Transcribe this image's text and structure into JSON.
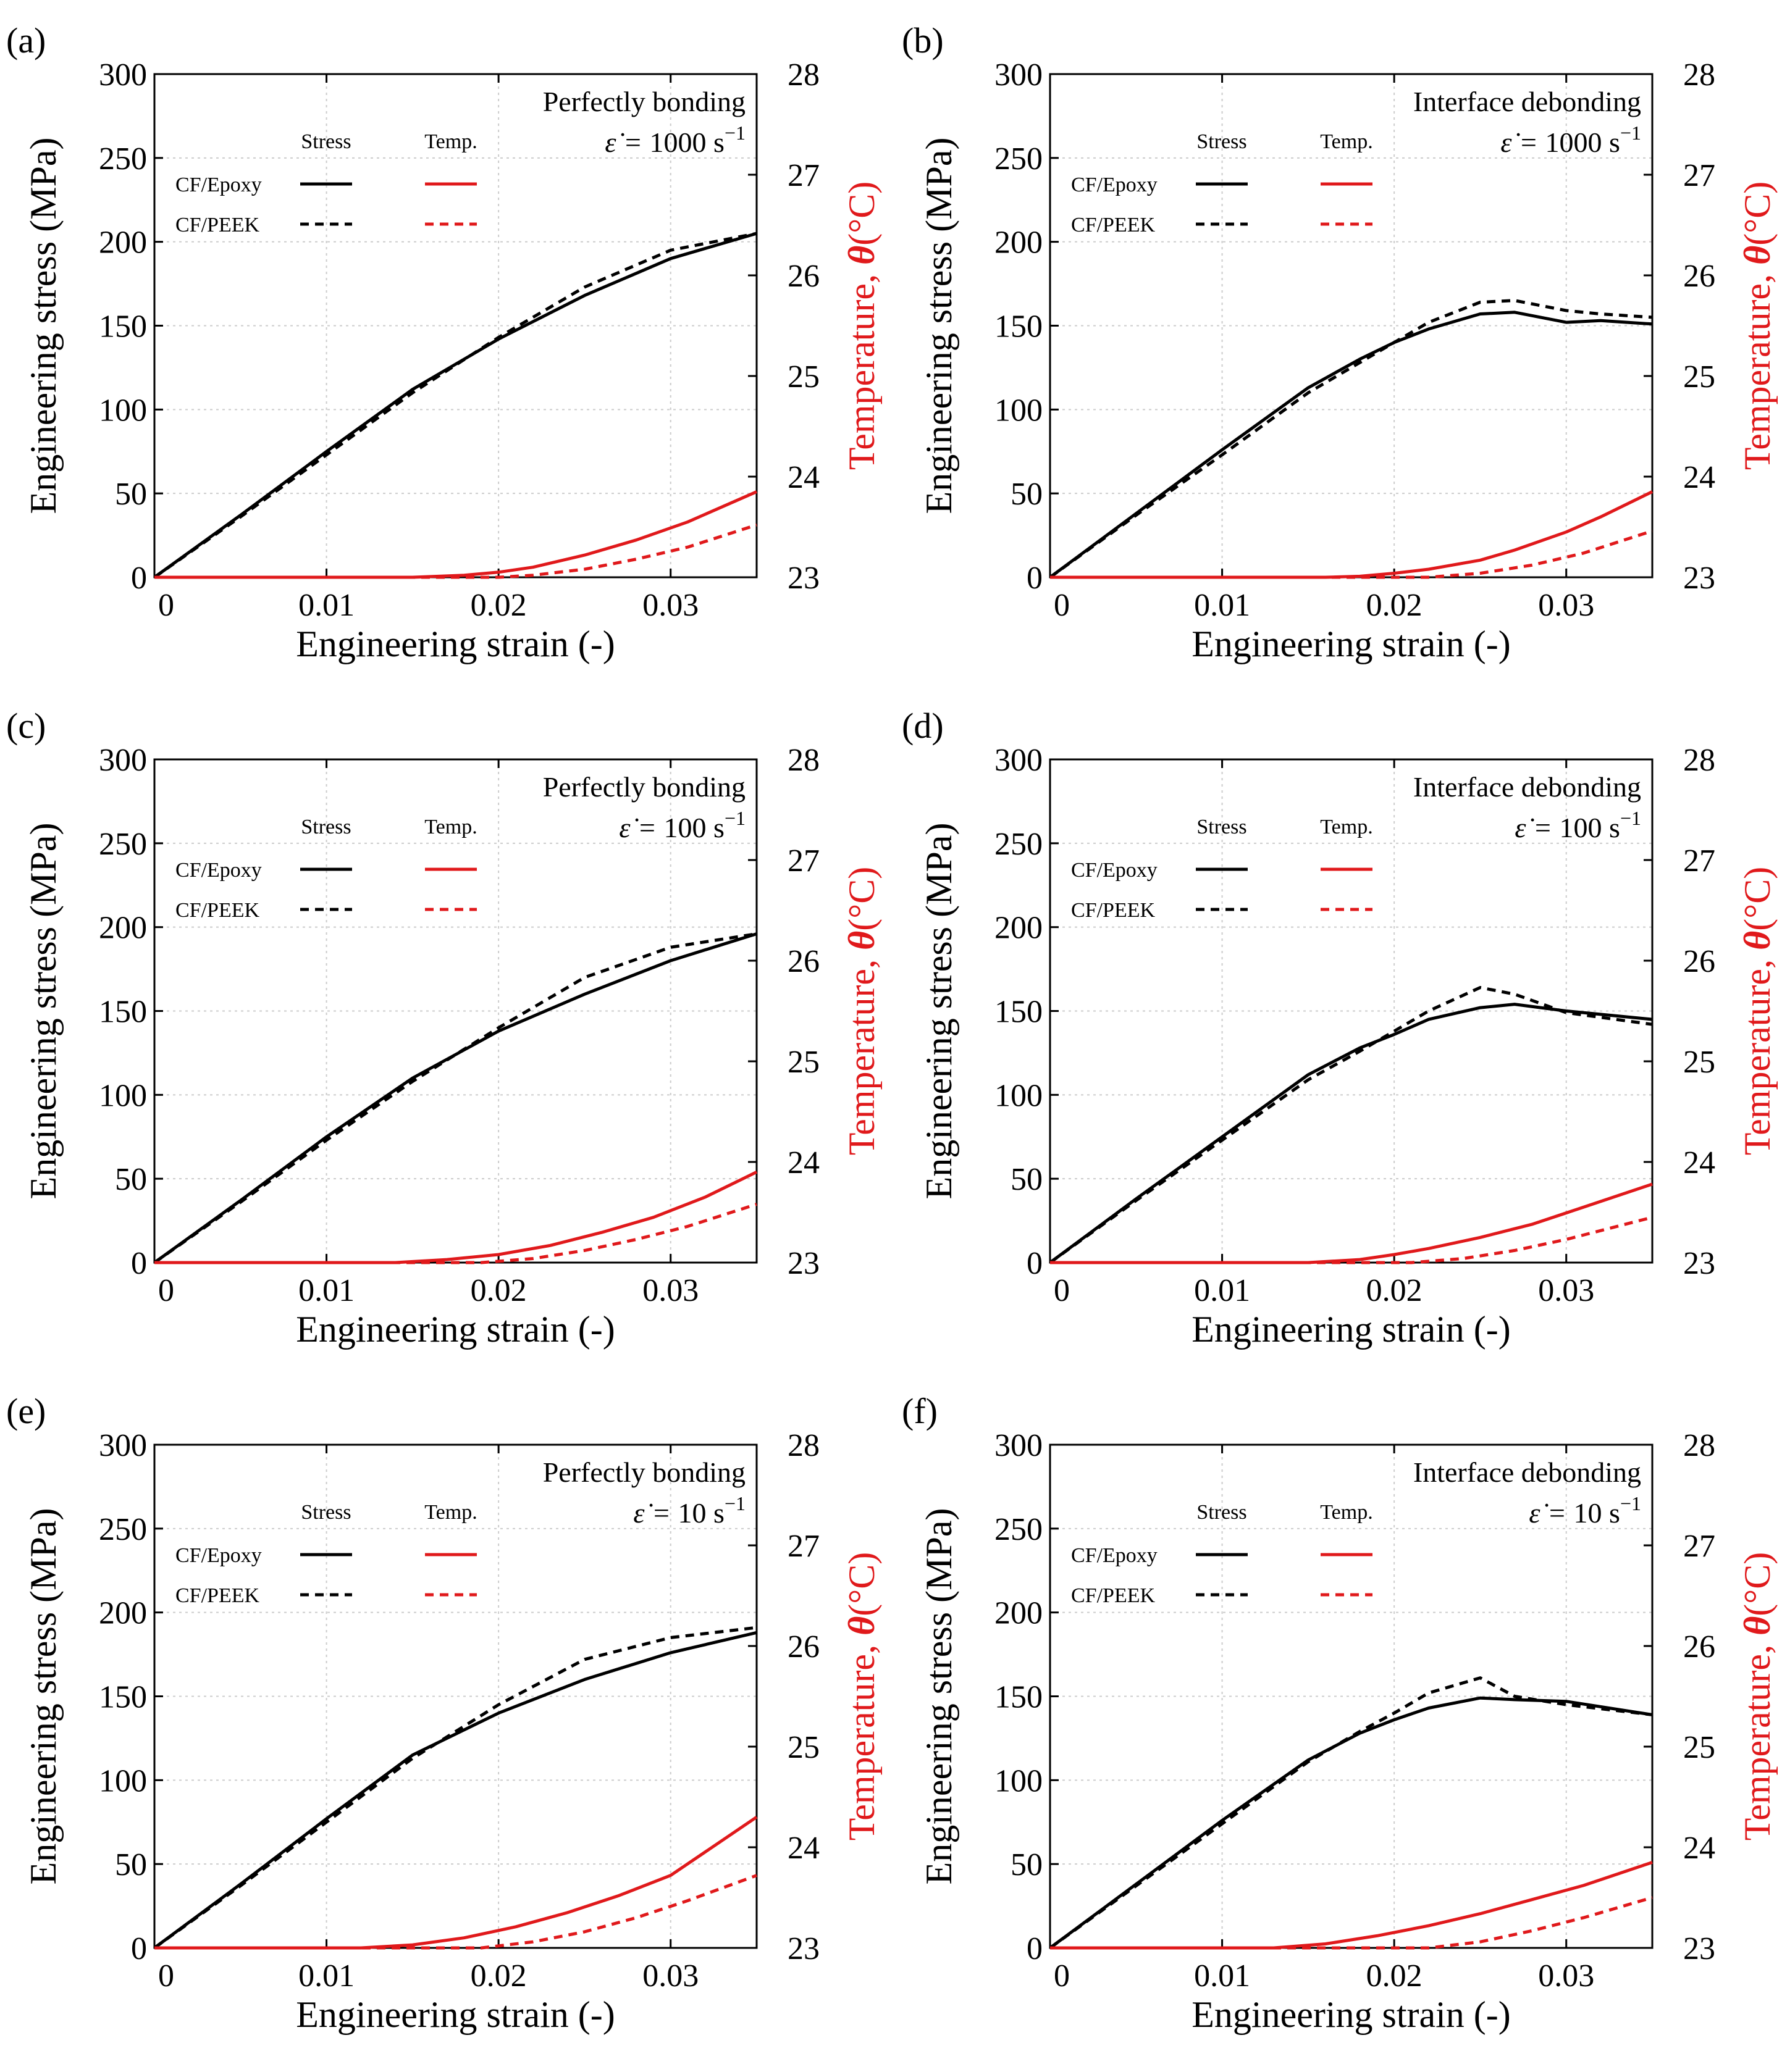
{
  "chart_data": [
    {
      "id": "a",
      "type": "line",
      "panel_label": "(a)",
      "condition": "Perfectly bonding",
      "rate_prefix": "ε̇ = ",
      "rate_value": "1000 s",
      "rate_exp": "−1",
      "xlabel": "Engineering strain (-)",
      "ylabel": "Engineering stress (MPa)",
      "y2label_prefix": "Temperature, ",
      "y2label_symbol": "θ",
      "y2label_unit": "(°C)",
      "xlim": [
        0,
        0.035
      ],
      "ylim": [
        0,
        300
      ],
      "y2lim": [
        23,
        28
      ],
      "xticks": [
        "0",
        "0.01",
        "0.02",
        "0.03"
      ],
      "yticks": [
        "0",
        "50",
        "100",
        "150",
        "200",
        "250",
        "300"
      ],
      "y2ticks": [
        "23",
        "24",
        "25",
        "26",
        "27",
        "28"
      ],
      "legend": {
        "stress_header": "Stress",
        "temp_header": "Temp.",
        "row1": "CF/Epoxy",
        "row2": "CF/PEEK"
      },
      "series": [
        {
          "name": "CF/Epoxy Stress",
          "axis": "left",
          "color": "#000000",
          "dashed": false,
          "x": [
            0,
            0.005,
            0.01,
            0.015,
            0.02,
            0.025,
            0.03,
            0.035
          ],
          "y": [
            0,
            37,
            75,
            112,
            142,
            168,
            190,
            205
          ]
        },
        {
          "name": "CF/PEEK Stress",
          "axis": "left",
          "color": "#000000",
          "dashed": true,
          "x": [
            0,
            0.005,
            0.01,
            0.015,
            0.02,
            0.025,
            0.03,
            0.035
          ],
          "y": [
            0,
            36,
            73,
            110,
            143,
            173,
            195,
            205
          ]
        },
        {
          "name": "CF/Epoxy Temp.",
          "axis": "right",
          "color": "#e0191b",
          "dashed": false,
          "x": [
            0,
            0.015,
            0.018,
            0.02,
            0.022,
            0.025,
            0.028,
            0.031,
            0.035
          ],
          "y": [
            23,
            23,
            23.02,
            23.05,
            23.1,
            23.22,
            23.37,
            23.55,
            23.85
          ]
        },
        {
          "name": "CF/PEEK Temp.",
          "axis": "right",
          "color": "#e0191b",
          "dashed": true,
          "x": [
            0,
            0.02,
            0.022,
            0.025,
            0.028,
            0.031,
            0.035
          ],
          "y": [
            23,
            23,
            23.02,
            23.08,
            23.18,
            23.3,
            23.52
          ]
        }
      ]
    },
    {
      "id": "b",
      "type": "line",
      "panel_label": "(b)",
      "condition": "Interface debonding",
      "rate_prefix": "ε̇ = ",
      "rate_value": "1000 s",
      "rate_exp": "−1",
      "xlabel": "Engineering strain (-)",
      "ylabel": "Engineering stress (MPa)",
      "y2label_prefix": "Temperature, ",
      "y2label_symbol": "θ",
      "y2label_unit": "(°C)",
      "xlim": [
        0,
        0.035
      ],
      "ylim": [
        0,
        300
      ],
      "y2lim": [
        23,
        28
      ],
      "xticks": [
        "0",
        "0.01",
        "0.02",
        "0.03"
      ],
      "yticks": [
        "0",
        "50",
        "100",
        "150",
        "200",
        "250",
        "300"
      ],
      "y2ticks": [
        "23",
        "24",
        "25",
        "26",
        "27",
        "28"
      ],
      "legend": {
        "stress_header": "Stress",
        "temp_header": "Temp.",
        "row1": "CF/Epoxy",
        "row2": "CF/PEEK"
      },
      "series": [
        {
          "name": "CF/Epoxy Stress",
          "axis": "left",
          "color": "#000000",
          "dashed": false,
          "x": [
            0,
            0.005,
            0.01,
            0.015,
            0.018,
            0.02,
            0.022,
            0.025,
            0.027,
            0.03,
            0.032,
            0.035
          ],
          "y": [
            0,
            38,
            76,
            113,
            130,
            140,
            148,
            157,
            158,
            152,
            153,
            151
          ]
        },
        {
          "name": "CF/PEEK Stress",
          "axis": "left",
          "color": "#000000",
          "dashed": true,
          "x": [
            0,
            0.005,
            0.01,
            0.015,
            0.018,
            0.02,
            0.022,
            0.025,
            0.027,
            0.03,
            0.032,
            0.035
          ],
          "y": [
            0,
            37,
            73,
            110,
            128,
            140,
            152,
            164,
            165,
            159,
            157,
            155
          ]
        },
        {
          "name": "CF/Epoxy Temp.",
          "axis": "right",
          "color": "#e0191b",
          "dashed": false,
          "x": [
            0,
            0.016,
            0.018,
            0.02,
            0.022,
            0.025,
            0.027,
            0.03,
            0.032,
            0.035
          ],
          "y": [
            23,
            23,
            23.01,
            23.04,
            23.08,
            23.17,
            23.27,
            23.45,
            23.6,
            23.85
          ]
        },
        {
          "name": "CF/PEEK Temp.",
          "axis": "right",
          "color": "#e0191b",
          "dashed": true,
          "x": [
            0,
            0.022,
            0.025,
            0.028,
            0.031,
            0.035
          ],
          "y": [
            23,
            23,
            23.04,
            23.12,
            23.24,
            23.46
          ]
        }
      ]
    },
    {
      "id": "c",
      "type": "line",
      "panel_label": "(c)",
      "condition": "Perfectly bonding",
      "rate_prefix": "ε̇ = ",
      "rate_value": "100 s",
      "rate_exp": "−1",
      "xlabel": "Engineering strain (-)",
      "ylabel": "Engineering stress (MPa)",
      "y2label_prefix": "Temperature, ",
      "y2label_symbol": "θ",
      "y2label_unit": "(°C)",
      "xlim": [
        0,
        0.035
      ],
      "ylim": [
        0,
        300
      ],
      "y2lim": [
        23,
        28
      ],
      "xticks": [
        "0",
        "0.01",
        "0.02",
        "0.03"
      ],
      "yticks": [
        "0",
        "50",
        "100",
        "150",
        "200",
        "250",
        "300"
      ],
      "y2ticks": [
        "23",
        "24",
        "25",
        "26",
        "27",
        "28"
      ],
      "legend": {
        "stress_header": "Stress",
        "temp_header": "Temp.",
        "row1": "CF/Epoxy",
        "row2": "CF/PEEK"
      },
      "series": [
        {
          "name": "CF/Epoxy Stress",
          "axis": "left",
          "color": "#000000",
          "dashed": false,
          "x": [
            0,
            0.005,
            0.01,
            0.015,
            0.02,
            0.025,
            0.03,
            0.035
          ],
          "y": [
            0,
            37,
            75,
            110,
            138,
            160,
            180,
            196
          ]
        },
        {
          "name": "CF/PEEK Stress",
          "axis": "left",
          "color": "#000000",
          "dashed": true,
          "x": [
            0,
            0.005,
            0.01,
            0.015,
            0.02,
            0.025,
            0.03,
            0.035
          ],
          "y": [
            0,
            36,
            73,
            108,
            140,
            170,
            188,
            196
          ]
        },
        {
          "name": "CF/Epoxy Temp.",
          "axis": "right",
          "color": "#e0191b",
          "dashed": false,
          "x": [
            0,
            0.014,
            0.017,
            0.02,
            0.023,
            0.026,
            0.029,
            0.032,
            0.035
          ],
          "y": [
            23,
            23,
            23.03,
            23.08,
            23.17,
            23.3,
            23.45,
            23.65,
            23.9
          ]
        },
        {
          "name": "CF/PEEK Temp.",
          "axis": "right",
          "color": "#e0191b",
          "dashed": true,
          "x": [
            0,
            0.019,
            0.022,
            0.025,
            0.028,
            0.031,
            0.035
          ],
          "y": [
            23,
            23,
            23.04,
            23.12,
            23.23,
            23.36,
            23.58
          ]
        }
      ]
    },
    {
      "id": "d",
      "type": "line",
      "panel_label": "(d)",
      "condition": "Interface debonding",
      "rate_prefix": "ε̇ = ",
      "rate_value": "100 s",
      "rate_exp": "−1",
      "xlabel": "Engineering strain (-)",
      "ylabel": "Engineering stress (MPa)",
      "y2label_prefix": "Temperature, ",
      "y2label_symbol": "θ",
      "y2label_unit": "(°C)",
      "xlim": [
        0,
        0.035
      ],
      "ylim": [
        0,
        300
      ],
      "y2lim": [
        23,
        28
      ],
      "xticks": [
        "0",
        "0.01",
        "0.02",
        "0.03"
      ],
      "yticks": [
        "0",
        "50",
        "100",
        "150",
        "200",
        "250",
        "300"
      ],
      "y2ticks": [
        "23",
        "24",
        "25",
        "26",
        "27",
        "28"
      ],
      "legend": {
        "stress_header": "Stress",
        "temp_header": "Temp.",
        "row1": "CF/Epoxy",
        "row2": "CF/PEEK"
      },
      "series": [
        {
          "name": "CF/Epoxy Stress",
          "axis": "left",
          "color": "#000000",
          "dashed": false,
          "x": [
            0,
            0.005,
            0.01,
            0.015,
            0.018,
            0.02,
            0.022,
            0.025,
            0.027,
            0.03,
            0.035
          ],
          "y": [
            0,
            38,
            75,
            112,
            128,
            136,
            145,
            152,
            154,
            150,
            145
          ]
        },
        {
          "name": "CF/PEEK Stress",
          "axis": "left",
          "color": "#000000",
          "dashed": true,
          "x": [
            0,
            0.005,
            0.01,
            0.015,
            0.018,
            0.02,
            0.022,
            0.025,
            0.027,
            0.03,
            0.035
          ],
          "y": [
            0,
            37,
            73,
            109,
            126,
            138,
            150,
            164,
            160,
            149,
            142
          ]
        },
        {
          "name": "CF/Epoxy Temp.",
          "axis": "right",
          "color": "#e0191b",
          "dashed": false,
          "x": [
            0,
            0.015,
            0.018,
            0.02,
            0.022,
            0.025,
            0.028,
            0.031,
            0.035
          ],
          "y": [
            23,
            23,
            23.03,
            23.08,
            23.14,
            23.25,
            23.38,
            23.55,
            23.78
          ]
        },
        {
          "name": "CF/PEEK Temp.",
          "axis": "right",
          "color": "#e0191b",
          "dashed": true,
          "x": [
            0,
            0.021,
            0.024,
            0.027,
            0.03,
            0.035
          ],
          "y": [
            23,
            23,
            23.04,
            23.12,
            23.23,
            23.45
          ]
        }
      ]
    },
    {
      "id": "e",
      "type": "line",
      "panel_label": "(e)",
      "condition": "Perfectly bonding",
      "rate_prefix": "ε̇ = ",
      "rate_value": "10 s",
      "rate_exp": "−1",
      "xlabel": "Engineering strain (-)",
      "ylabel": "Engineering stress (MPa)",
      "y2label_prefix": "Temperature, ",
      "y2label_symbol": "θ",
      "y2label_unit": "(°C)",
      "xlim": [
        0,
        0.035
      ],
      "ylim": [
        0,
        300
      ],
      "y2lim": [
        23,
        28
      ],
      "xticks": [
        "0",
        "0.01",
        "0.02",
        "0.03"
      ],
      "yticks": [
        "0",
        "50",
        "100",
        "150",
        "200",
        "250",
        "300"
      ],
      "y2ticks": [
        "23",
        "24",
        "25",
        "26",
        "27",
        "28"
      ],
      "legend": {
        "stress_header": "Stress",
        "temp_header": "Temp.",
        "row1": "CF/Epoxy",
        "row2": "CF/PEEK"
      },
      "series": [
        {
          "name": "CF/Epoxy Stress",
          "axis": "left",
          "color": "#000000",
          "dashed": false,
          "x": [
            0,
            0.005,
            0.01,
            0.015,
            0.02,
            0.025,
            0.03,
            0.035
          ],
          "y": [
            0,
            38,
            77,
            115,
            140,
            160,
            176,
            188
          ]
        },
        {
          "name": "CF/PEEK Stress",
          "axis": "left",
          "color": "#000000",
          "dashed": true,
          "x": [
            0,
            0.005,
            0.01,
            0.015,
            0.02,
            0.025,
            0.03,
            0.035
          ],
          "y": [
            0,
            37,
            75,
            113,
            145,
            172,
            185,
            191
          ]
        },
        {
          "name": "CF/Epoxy Temp.",
          "axis": "right",
          "color": "#e0191b",
          "dashed": false,
          "x": [
            0,
            0.012,
            0.015,
            0.018,
            0.021,
            0.024,
            0.027,
            0.03,
            0.035
          ],
          "y": [
            23,
            23,
            23.03,
            23.1,
            23.21,
            23.35,
            23.52,
            23.72,
            24.3
          ]
        },
        {
          "name": "CF/PEEK Temp.",
          "axis": "right",
          "color": "#e0191b",
          "dashed": true,
          "x": [
            0,
            0.019,
            0.022,
            0.025,
            0.028,
            0.031,
            0.035
          ],
          "y": [
            23,
            23,
            23.06,
            23.16,
            23.3,
            23.47,
            23.72
          ]
        }
      ]
    },
    {
      "id": "f",
      "type": "line",
      "panel_label": "(f)",
      "condition": "Interface debonding",
      "rate_prefix": "ε̇ = ",
      "rate_value": "10 s",
      "rate_exp": "−1",
      "xlabel": "Engineering strain (-)",
      "ylabel": "Engineering stress (MPa)",
      "y2label_prefix": "Temperature, ",
      "y2label_symbol": "θ",
      "y2label_unit": "(°C)",
      "xlim": [
        0,
        0.035
      ],
      "ylim": [
        0,
        300
      ],
      "y2lim": [
        23,
        28
      ],
      "xticks": [
        "0",
        "0.01",
        "0.02",
        "0.03"
      ],
      "yticks": [
        "0",
        "50",
        "100",
        "150",
        "200",
        "250",
        "300"
      ],
      "y2ticks": [
        "23",
        "24",
        "25",
        "26",
        "27",
        "28"
      ],
      "legend": {
        "stress_header": "Stress",
        "temp_header": "Temp.",
        "row1": "CF/Epoxy",
        "row2": "CF/PEEK"
      },
      "series": [
        {
          "name": "CF/Epoxy Stress",
          "axis": "left",
          "color": "#000000",
          "dashed": false,
          "x": [
            0,
            0.005,
            0.01,
            0.015,
            0.018,
            0.02,
            0.022,
            0.025,
            0.027,
            0.03,
            0.035
          ],
          "y": [
            0,
            38,
            76,
            112,
            128,
            136,
            143,
            149,
            148,
            147,
            139
          ]
        },
        {
          "name": "CF/PEEK Stress",
          "axis": "left",
          "color": "#000000",
          "dashed": true,
          "x": [
            0,
            0.005,
            0.01,
            0.015,
            0.018,
            0.02,
            0.022,
            0.025,
            0.027,
            0.03,
            0.035
          ],
          "y": [
            0,
            37,
            74,
            111,
            129,
            140,
            152,
            161,
            150,
            145,
            139
          ]
        },
        {
          "name": "CF/Epoxy Temp.",
          "axis": "right",
          "color": "#e0191b",
          "dashed": false,
          "x": [
            0,
            0.013,
            0.016,
            0.019,
            0.022,
            0.025,
            0.028,
            0.031,
            0.035
          ],
          "y": [
            23,
            23,
            23.04,
            23.12,
            23.22,
            23.34,
            23.48,
            23.62,
            23.85
          ]
        },
        {
          "name": "CF/PEEK Temp.",
          "axis": "right",
          "color": "#e0191b",
          "dashed": true,
          "x": [
            0,
            0.022,
            0.025,
            0.028,
            0.031,
            0.035
          ],
          "y": [
            23,
            23,
            23.06,
            23.17,
            23.3,
            23.5
          ]
        }
      ]
    }
  ]
}
